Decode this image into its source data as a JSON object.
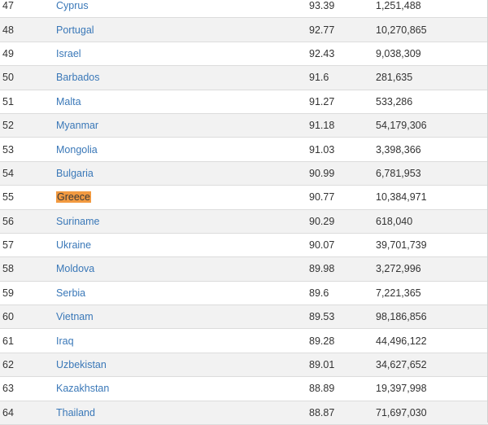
{
  "table": {
    "rows": [
      {
        "rank": "47",
        "country": "Cyprus",
        "score": "93.39",
        "population": "1,251,488",
        "highlight": false
      },
      {
        "rank": "48",
        "country": "Portugal",
        "score": "92.77",
        "population": "10,270,865",
        "highlight": false
      },
      {
        "rank": "49",
        "country": "Israel",
        "score": "92.43",
        "population": "9,038,309",
        "highlight": false
      },
      {
        "rank": "50",
        "country": "Barbados",
        "score": "91.6",
        "population": "281,635",
        "highlight": false
      },
      {
        "rank": "51",
        "country": "Malta",
        "score": "91.27",
        "population": "533,286",
        "highlight": false
      },
      {
        "rank": "52",
        "country": "Myanmar",
        "score": "91.18",
        "population": "54,179,306",
        "highlight": false
      },
      {
        "rank": "53",
        "country": "Mongolia",
        "score": "91.03",
        "population": "3,398,366",
        "highlight": false
      },
      {
        "rank": "54",
        "country": "Bulgaria",
        "score": "90.99",
        "population": "6,781,953",
        "highlight": false
      },
      {
        "rank": "55",
        "country": "Greece",
        "score": "90.77",
        "population": "10,384,971",
        "highlight": true
      },
      {
        "rank": "56",
        "country": "Suriname",
        "score": "90.29",
        "population": "618,040",
        "highlight": false
      },
      {
        "rank": "57",
        "country": "Ukraine",
        "score": "90.07",
        "population": "39,701,739",
        "highlight": false
      },
      {
        "rank": "58",
        "country": "Moldova",
        "score": "89.98",
        "population": "3,272,996",
        "highlight": false
      },
      {
        "rank": "59",
        "country": "Serbia",
        "score": "89.6",
        "population": "7,221,365",
        "highlight": false
      },
      {
        "rank": "60",
        "country": "Vietnam",
        "score": "89.53",
        "population": "98,186,856",
        "highlight": false
      },
      {
        "rank": "61",
        "country": "Iraq",
        "score": "89.28",
        "population": "44,496,122",
        "highlight": false
      },
      {
        "rank": "62",
        "country": "Uzbekistan",
        "score": "89.01",
        "population": "34,627,652",
        "highlight": false
      },
      {
        "rank": "63",
        "country": "Kazakhstan",
        "score": "88.89",
        "population": "19,397,998",
        "highlight": false
      },
      {
        "rank": "64",
        "country": "Thailand",
        "score": "88.87",
        "population": "71,697,030",
        "highlight": false
      }
    ],
    "colors": {
      "link": "#3a78b8",
      "highlight": "#f29a41",
      "stripe": "#f2f2f2"
    }
  }
}
